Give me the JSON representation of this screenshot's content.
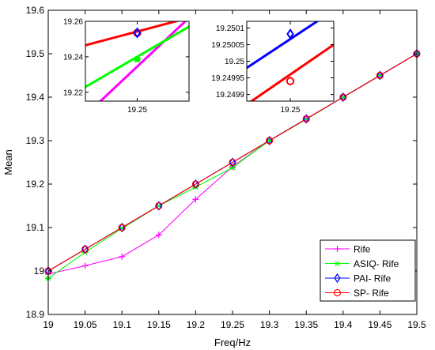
{
  "chart_data": [
    {
      "type": "line",
      "xlabel": "Freq/Hz",
      "ylabel": "Mean",
      "xlim": [
        19,
        19.5
      ],
      "ylim": [
        18.9,
        19.6
      ],
      "x_ticks": [
        "19",
        "19.05",
        "19.1",
        "19.15",
        "19.2",
        "19.25",
        "19.3",
        "19.35",
        "19.4",
        "19.45",
        "19.5"
      ],
      "y_ticks": [
        "18.9",
        "19",
        "19.1",
        "19.2",
        "19.3",
        "19.4",
        "19.5",
        "19.6"
      ],
      "grid": false,
      "legend_position": "bottom-right",
      "x": [
        19,
        19.05,
        19.1,
        19.15,
        19.2,
        19.25,
        19.3,
        19.35,
        19.4,
        19.45,
        19.5
      ],
      "series": [
        {
          "name": "Rife",
          "color": "#ff00ff",
          "marker": "plus",
          "values": [
            18.993,
            19.012,
            19.033,
            19.083,
            19.165,
            19.24,
            19.3,
            19.35,
            19.4,
            19.45,
            19.5
          ]
        },
        {
          "name": "ASIQ- Rife",
          "color": "#00ff00",
          "marker": "asterisk",
          "values": [
            18.983,
            19.043,
            19.098,
            19.15,
            19.193,
            19.238,
            19.3,
            19.349,
            19.4,
            19.45,
            19.5
          ]
        },
        {
          "name": "PAI- Rife",
          "color": "#0000ff",
          "marker": "diamond",
          "values": [
            19,
            19.05,
            19.1,
            19.15,
            19.2,
            19.25,
            19.3,
            19.35,
            19.4,
            19.45,
            19.5
          ]
        },
        {
          "name": "SP- Rife",
          "color": "#ff0000",
          "marker": "circle",
          "values": [
            19,
            19.05,
            19.1,
            19.15,
            19.2,
            19.25,
            19.3,
            19.35,
            19.4,
            19.45,
            19.5
          ]
        }
      ]
    },
    {
      "type": "line",
      "role": "inset",
      "xlim": [
        19.243,
        19.257
      ],
      "ylim": [
        19.215,
        19.26
      ],
      "x_ticks": [
        "19.25"
      ],
      "y_ticks": [
        "19.22",
        "19.24",
        "19.26"
      ],
      "marker_x": 19.25,
      "series": [
        {
          "name": "Rife",
          "color": "#ff00ff",
          "x": [
            19.243,
            19.257
          ],
          "values": [
            19.207,
            19.262
          ]
        },
        {
          "name": "ASIQ- Rife",
          "color": "#00ff00",
          "x": [
            19.243,
            19.257
          ],
          "values": [
            19.223,
            19.257
          ],
          "marker_value": 19.2385
        },
        {
          "name": "SP- Rife",
          "color": "#ff0000",
          "x": [
            19.243,
            19.257
          ],
          "values": [
            19.2465,
            19.262
          ],
          "marker_value": 19.2535
        },
        {
          "name": "PAI- Rife",
          "color": "#0000ff",
          "marker_value": 19.2535
        }
      ]
    },
    {
      "type": "line",
      "role": "inset",
      "xlim": [
        19.2455,
        19.2545
      ],
      "ylim": [
        19.24988,
        19.25012
      ],
      "x_ticks": [
        "19.25"
      ],
      "y_ticks": [
        "19.2499",
        "19.24995",
        "19.25",
        "19.25005",
        "19.2501"
      ],
      "marker_x": 19.25,
      "series": [
        {
          "name": "PAI- Rife",
          "color": "#0000ff",
          "x": [
            19.2455,
            19.2533
          ],
          "values": [
            19.24998,
            19.25013
          ],
          "marker_value": 19.250082
        },
        {
          "name": "SP- Rife",
          "color": "#ff0000",
          "x": [
            19.2455,
            19.2545
          ],
          "values": [
            19.24987,
            19.25005
          ],
          "marker_value": 19.24994
        }
      ]
    }
  ]
}
